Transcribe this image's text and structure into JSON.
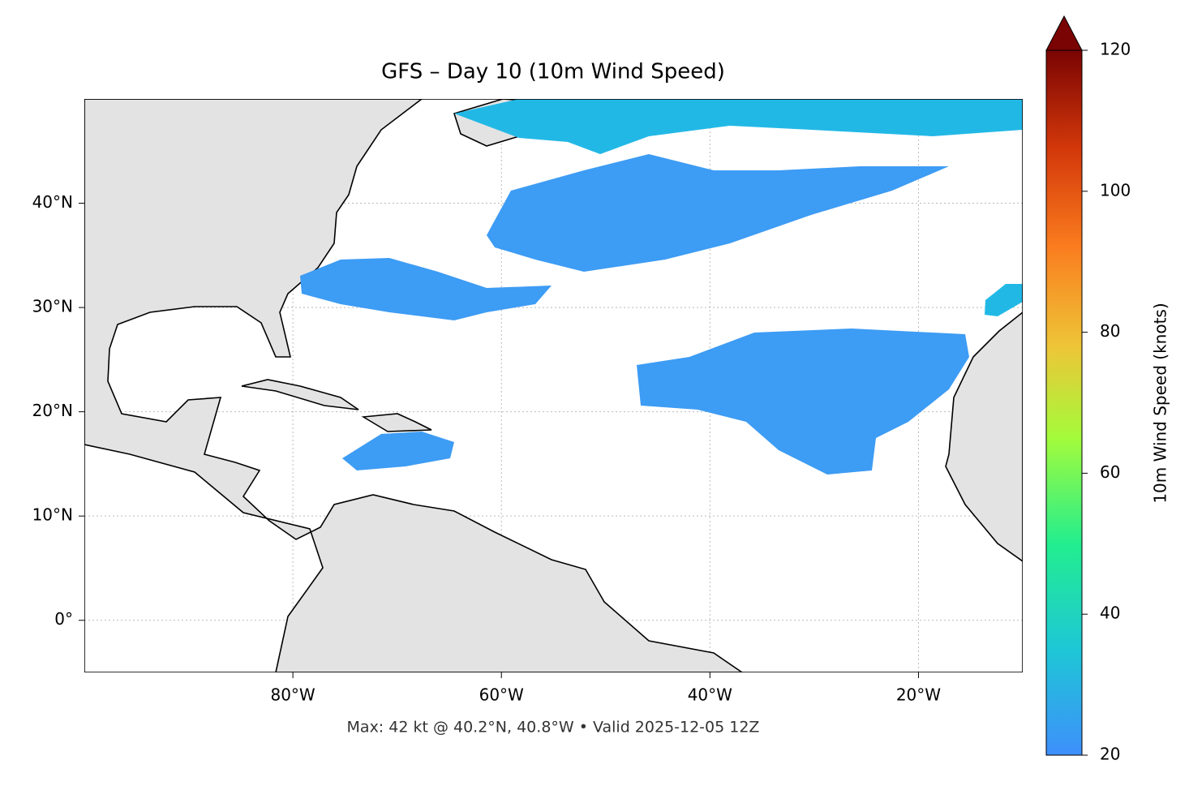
{
  "chart_data": {
    "type": "map",
    "title": "GFS – Day 10 (10m Wind Speed)",
    "footer": "Max: 42 kt @ 40.2°N, 40.8°W • Valid 2025-12-05 12Z",
    "xlim": [
      -100,
      -10
    ],
    "xticks": [
      {
        "value": -80,
        "label": "80°W"
      },
      {
        "value": -60,
        "label": "60°W"
      },
      {
        "value": -40,
        "label": "40°W"
      },
      {
        "value": -20,
        "label": "20°W"
      }
    ],
    "ylim": [
      -5,
      50
    ],
    "yticks": [
      {
        "value": 0,
        "label": "0°"
      },
      {
        "value": 10,
        "label": "10°N"
      },
      {
        "value": 20,
        "label": "20°N"
      },
      {
        "value": 30,
        "label": "30°N"
      },
      {
        "value": 40,
        "label": "40°N"
      }
    ],
    "grid": true,
    "colorbar": {
      "label": "10m Wind Speed (knots)",
      "lim": [
        20,
        120
      ],
      "ticks": [
        20,
        40,
        60,
        80,
        100,
        120
      ],
      "extend": "max"
    }
  }
}
